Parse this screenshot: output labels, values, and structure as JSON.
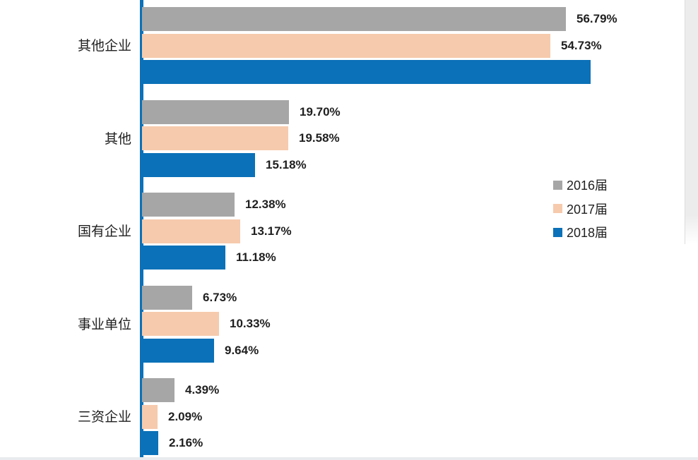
{
  "chart_data": {
    "type": "bar",
    "orientation": "horizontal",
    "title": "",
    "xlabel": "",
    "ylabel": "",
    "grid": false,
    "legend_position": "right",
    "categories": [
      "其他企业",
      "其他",
      "国有企业",
      "事业单位",
      "三资企业"
    ],
    "series": [
      {
        "name": "2016届",
        "color": "#a6a6a6",
        "values": [
          56.79,
          19.7,
          12.38,
          6.73,
          4.39
        ],
        "labels": [
          "56.79%",
          "19.70%",
          "12.38%",
          "6.73%",
          "4.39%"
        ]
      },
      {
        "name": "2017届",
        "color": "#f6caad",
        "values": [
          54.73,
          19.58,
          13.17,
          10.33,
          2.09
        ],
        "labels": [
          "54.73%",
          "19.58%",
          "13.17%",
          "10.33%",
          "2.09%"
        ]
      },
      {
        "name": "2018届",
        "color": "#0b71b8",
        "values": [
          60.1,
          15.18,
          11.18,
          9.64,
          2.16
        ],
        "labels": [
          "",
          "15.18%",
          "11.18%",
          "9.64%",
          "2.16%"
        ]
      }
    ],
    "axis_color": "#0b71b8",
    "value_unit": "%"
  },
  "colors": {
    "label_text": "#1f1f1f",
    "page_edge": "#ececec",
    "bottom_divider": "#e9ebee"
  }
}
